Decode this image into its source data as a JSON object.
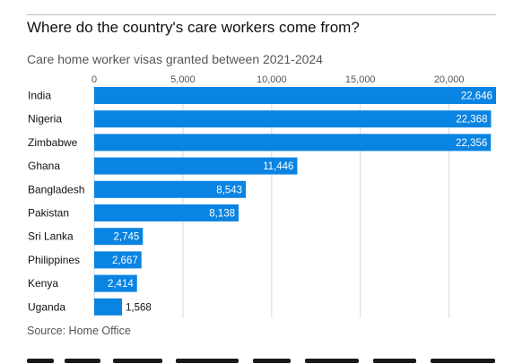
{
  "title": "Where do the country's care workers come from?",
  "subtitle": "Care home worker visas granted between 2021-2024",
  "source": "Source: Home Office",
  "colors": {
    "bar": "#0a84e2",
    "label_inside": "#ffffff",
    "label_outside": "#111111",
    "grid": "#d9d9d9"
  },
  "chart_data": {
    "type": "bar",
    "orientation": "horizontal",
    "categories": [
      "India",
      "Nigeria",
      "Zimbabwe",
      "Ghana",
      "Bangladesh",
      "Pakistan",
      "Sri Lanka",
      "Philippines",
      "Kenya",
      "Uganda"
    ],
    "values": [
      22646,
      22368,
      22356,
      11446,
      8543,
      8138,
      2745,
      2667,
      2414,
      1568
    ],
    "value_labels": [
      "22,646",
      "22,368",
      "22,356",
      "11,446",
      "8,543",
      "8,138",
      "2,745",
      "2,667",
      "2,414",
      "1,568"
    ],
    "x_ticks": [
      0,
      5000,
      10000,
      15000,
      20000
    ],
    "x_tick_labels": [
      "0",
      "5,000",
      "10,000",
      "15,000",
      "20,000"
    ],
    "xlim": [
      0,
      22646
    ],
    "grid": true,
    "legend": "none"
  }
}
